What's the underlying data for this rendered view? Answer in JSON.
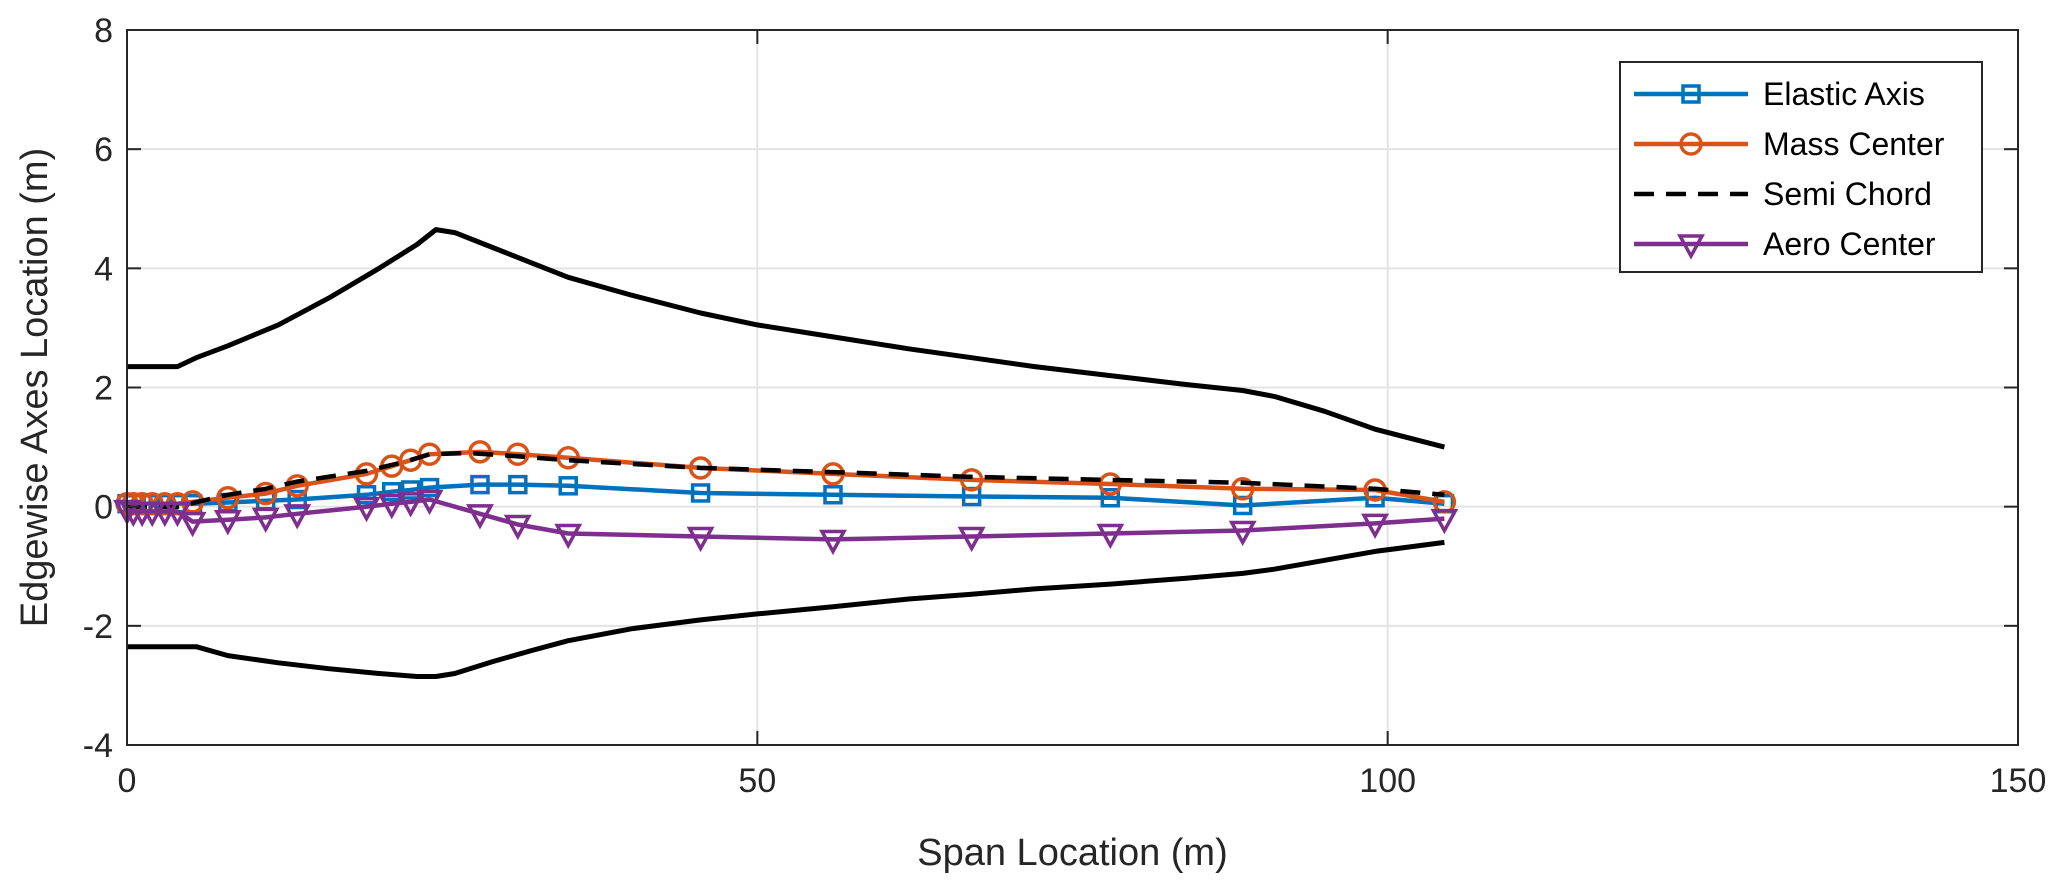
{
  "chart_data": {
    "type": "line",
    "xlabel": "Span Location (m)",
    "ylabel": "Edgewise Axes Location (m)",
    "xlim": [
      0,
      150
    ],
    "ylim": [
      -4,
      8
    ],
    "xticks": [
      0,
      50,
      100,
      150
    ],
    "yticks": [
      -4,
      -2,
      0,
      2,
      4,
      6,
      8
    ],
    "grid": true,
    "legend_position": "top-right",
    "series": [
      {
        "name": "Elastic Axis",
        "color": "#0072BD",
        "marker": "square",
        "style": "solid",
        "x": [
          0,
          0.5,
          1.2,
          2,
          3,
          4,
          5.2,
          8,
          11,
          13.5,
          19,
          21,
          22.5,
          24,
          28,
          31,
          35,
          45.5,
          56,
          67,
          78,
          88.5,
          99,
          104.5
        ],
        "y": [
          0.05,
          0.05,
          0.05,
          0.05,
          0.05,
          0.05,
          0.05,
          0.07,
          0.1,
          0.12,
          0.2,
          0.25,
          0.28,
          0.32,
          0.37,
          0.37,
          0.35,
          0.23,
          0.2,
          0.17,
          0.15,
          0.02,
          0.15,
          0.05
        ]
      },
      {
        "name": "Mass Center",
        "color": "#D95319",
        "marker": "circle",
        "style": "solid",
        "x": [
          0,
          0.5,
          1.2,
          2,
          3,
          4,
          5.2,
          8,
          11,
          13.5,
          19,
          21,
          22.5,
          24,
          28,
          31,
          35,
          45.5,
          56,
          67,
          78,
          88.5,
          99,
          104.5
        ],
        "y": [
          0.05,
          0.05,
          0.05,
          0.05,
          0.05,
          0.05,
          0.08,
          0.15,
          0.22,
          0.35,
          0.55,
          0.68,
          0.78,
          0.88,
          0.92,
          0.88,
          0.82,
          0.65,
          0.55,
          0.45,
          0.38,
          0.3,
          0.28,
          0.08
        ]
      },
      {
        "name": "Semi Chord",
        "color": "#000000",
        "marker": "none",
        "style": "dashed",
        "x": [
          0,
          2,
          4,
          5,
          8,
          11,
          13.5,
          19,
          22,
          24,
          27,
          30,
          35,
          45.5,
          56,
          67,
          78,
          88.5,
          99,
          104.5
        ],
        "y": [
          0,
          0,
          0,
          0.05,
          0.2,
          0.3,
          0.42,
          0.6,
          0.75,
          0.88,
          0.9,
          0.86,
          0.78,
          0.65,
          0.58,
          0.5,
          0.45,
          0.4,
          0.3,
          0.2
        ]
      },
      {
        "name": "Aero Center",
        "color": "#7E2F8E",
        "marker": "triangle-down",
        "style": "solid",
        "x": [
          0,
          0.5,
          1.2,
          2,
          3,
          4,
          5.2,
          8,
          11,
          13.5,
          19,
          21,
          22.5,
          24,
          28,
          31,
          35,
          45.5,
          56,
          67,
          78,
          88.5,
          99,
          104.5
        ],
        "y": [
          -0.05,
          -0.08,
          -0.08,
          -0.08,
          -0.08,
          -0.08,
          -0.25,
          -0.22,
          -0.18,
          -0.12,
          0.0,
          0.05,
          0.08,
          0.12,
          -0.12,
          -0.3,
          -0.45,
          -0.5,
          -0.55,
          -0.5,
          -0.45,
          -0.4,
          -0.28,
          -0.2
        ]
      }
    ],
    "outline": {
      "color": "#000000",
      "style": "solid",
      "x": [
        0,
        2,
        4,
        5.5,
        8,
        12,
        16,
        20,
        23,
        24.5,
        26,
        29,
        32,
        35,
        40,
        45.5,
        50,
        56,
        62,
        67,
        72,
        78,
        84,
        88.5,
        91,
        95,
        99,
        104.5
      ],
      "upper": [
        2.35,
        2.35,
        2.35,
        2.5,
        2.7,
        3.05,
        3.5,
        4.0,
        4.4,
        4.65,
        4.6,
        4.35,
        4.1,
        3.85,
        3.55,
        3.25,
        3.05,
        2.85,
        2.65,
        2.5,
        2.35,
        2.2,
        2.05,
        1.95,
        1.85,
        1.6,
        1.3,
        1.0
      ],
      "lower": [
        -2.35,
        -2.35,
        -2.35,
        -2.35,
        -2.5,
        -2.62,
        -2.72,
        -2.8,
        -2.85,
        -2.85,
        -2.8,
        -2.6,
        -2.42,
        -2.25,
        -2.05,
        -1.9,
        -1.8,
        -1.68,
        -1.55,
        -1.47,
        -1.38,
        -1.3,
        -1.2,
        -1.12,
        -1.05,
        -0.9,
        -0.75,
        -0.6
      ]
    }
  }
}
